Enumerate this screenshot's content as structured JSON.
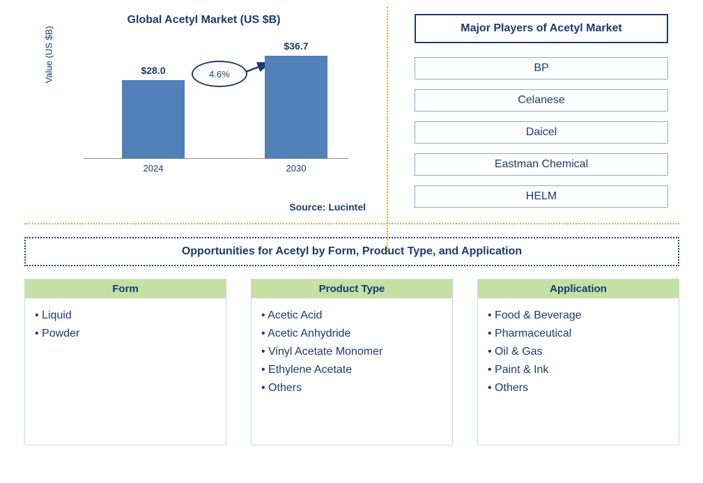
{
  "chart": {
    "title": "Global Acetyl Market (US $B)",
    "y_axis_label": "Value (US $B)",
    "growth_rate": "4.6%",
    "source": "Source: Lucintel",
    "ylim_max": 40,
    "bar_color": "#5280b8",
    "bars": [
      {
        "year": "2024",
        "label": "$28.0",
        "value": 28.0
      },
      {
        "year": "2030",
        "label": "$36.7",
        "value": 36.7
      }
    ]
  },
  "players": {
    "title": "Major Players of Acetyl Market",
    "list": [
      "BP",
      "Celanese",
      "Daicel",
      "Eastman Chemical",
      "HELM"
    ]
  },
  "opportunities": {
    "title": "Opportunities for Acetyl by Form, Product Type, and Application",
    "columns": [
      {
        "header": "Form",
        "items": [
          "Liquid",
          "Powder"
        ]
      },
      {
        "header": "Product Type",
        "items": [
          "Acetic Acid",
          "Acetic Anhydride",
          "Vinyl Acetate Monomer",
          "Ethylene Acetate",
          "Others"
        ]
      },
      {
        "header": "Application",
        "items": [
          "Food & Beverage",
          "Pharmaceutical",
          "Oil & Gas",
          "Paint & Ink",
          "Others"
        ]
      }
    ]
  },
  "colors": {
    "text_primary": "#1a3a6e",
    "bar": "#5280b8",
    "divider": "#e8a838",
    "col_header_bg": "#c5e0a5",
    "player_border": "#7faedc",
    "col_border": "#c5d9ed"
  }
}
